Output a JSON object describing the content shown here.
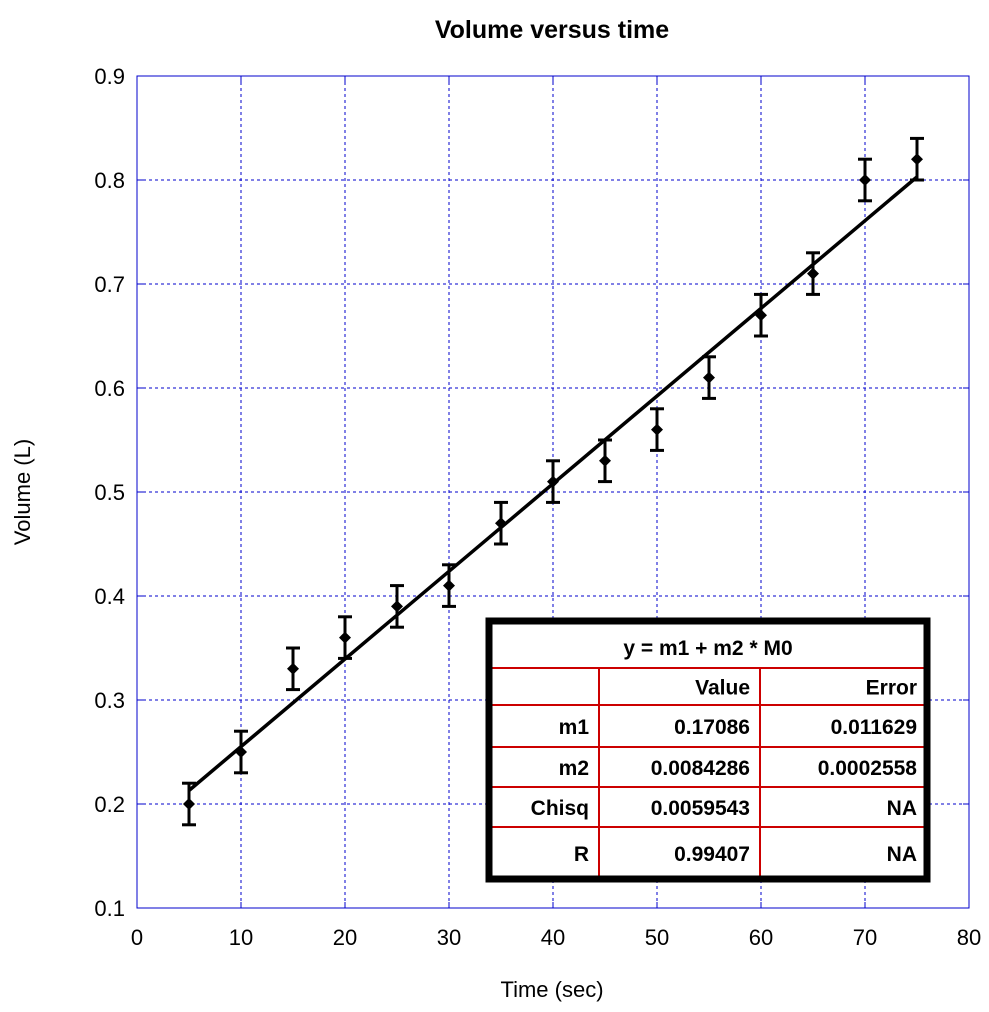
{
  "chart_data": {
    "type": "scatter",
    "title": "Volume versus time",
    "xlabel": "Time (sec)",
    "ylabel": "Volume (L)",
    "xlim": [
      0,
      80
    ],
    "ylim": [
      0.1,
      0.9
    ],
    "x_ticks": [
      0,
      10,
      20,
      30,
      40,
      50,
      60,
      70,
      80
    ],
    "y_ticks": [
      0.1,
      0.2,
      0.3,
      0.4,
      0.5,
      0.6,
      0.7,
      0.8,
      0.9
    ],
    "x_tick_labels": [
      "0",
      "10",
      "20",
      "30",
      "40",
      "50",
      "60",
      "70",
      "80"
    ],
    "y_tick_labels": [
      "0.1",
      "0.2",
      "0.3",
      "0.4",
      "0.5",
      "0.6",
      "0.7",
      "0.8",
      "0.9"
    ],
    "grid": true,
    "grid_color": "#0000cc",
    "series": [
      {
        "x": [
          5,
          10,
          15,
          20,
          25,
          30,
          35,
          40,
          45,
          50,
          55,
          60,
          65,
          70,
          75
        ],
        "y": [
          0.2,
          0.25,
          0.33,
          0.36,
          0.39,
          0.41,
          0.47,
          0.51,
          0.53,
          0.56,
          0.61,
          0.67,
          0.71,
          0.8,
          0.82
        ],
        "error": [
          0.02,
          0.02,
          0.02,
          0.02,
          0.02,
          0.02,
          0.02,
          0.02,
          0.02,
          0.02,
          0.02,
          0.02,
          0.02,
          0.02,
          0.02
        ],
        "marker": "diamond",
        "color": "#000000"
      }
    ],
    "fit": {
      "intercept": 0.17086,
      "slope": 0.0084286,
      "x_range": [
        5,
        75
      ],
      "color": "#000000"
    },
    "fit_table": {
      "equation": "y = m1 + m2 * M0",
      "headers": [
        "",
        "Value",
        "Error"
      ],
      "rows": [
        [
          "m1",
          "0.17086",
          "0.011629"
        ],
        [
          "m2",
          "0.0084286",
          "0.0002558"
        ],
        [
          "Chisq",
          "0.0059543",
          "NA"
        ],
        [
          "R",
          "0.99407",
          "NA"
        ]
      ],
      "rule_color": "#cc0000",
      "placement": "bottom-right"
    }
  }
}
